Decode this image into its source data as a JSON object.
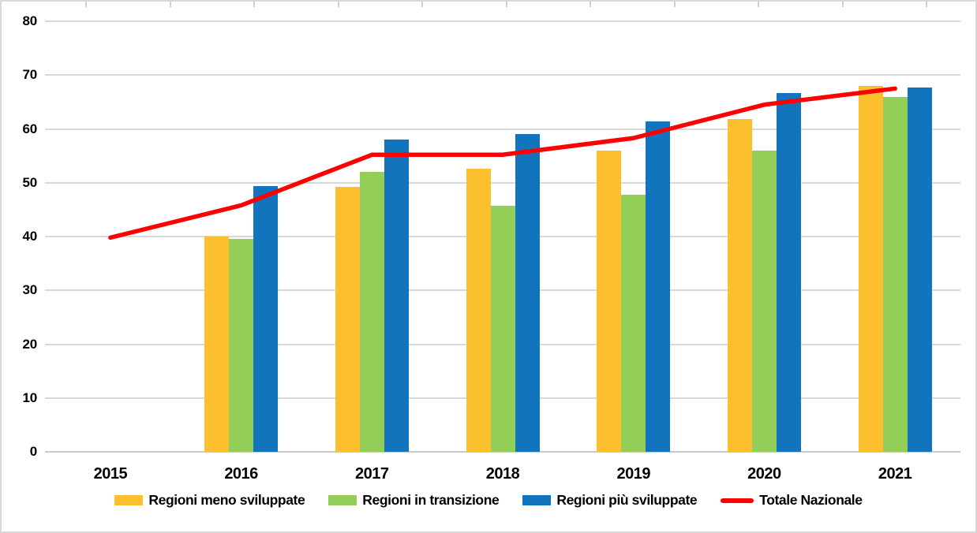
{
  "chart_data": {
    "type": "bar",
    "subtype": "grouped-bars-with-line-overlay",
    "title": "",
    "xlabel": "",
    "ylabel": "",
    "categories": [
      "2015",
      "2016",
      "2017",
      "2018",
      "2019",
      "2020",
      "2021"
    ],
    "series": [
      {
        "name": "Regioni meno sviluppate",
        "type": "bar",
        "color": "#FCC02E",
        "values": [
          null,
          40.0,
          49.3,
          52.6,
          55.9,
          61.8,
          68.0
        ]
      },
      {
        "name": "Regioni in transizione",
        "type": "bar",
        "color": "#92CE58",
        "values": [
          null,
          39.6,
          52.0,
          45.7,
          47.7,
          55.9,
          66.0
        ]
      },
      {
        "name": "Regioni più sviluppate",
        "type": "bar",
        "color": "#1274BD",
        "values": [
          null,
          49.4,
          58.0,
          59.1,
          61.4,
          66.6,
          67.7
        ]
      },
      {
        "name": "Totale Nazionale",
        "type": "line",
        "color": "#FF0000",
        "values": [
          39.8,
          45.8,
          55.2,
          55.2,
          58.3,
          64.5,
          67.5
        ]
      }
    ],
    "ylim": [
      0,
      80
    ],
    "yticks": [
      0,
      10,
      20,
      30,
      40,
      50,
      60,
      70,
      80
    ],
    "grid": true,
    "legend_position": "bottom"
  },
  "colors": {
    "gridline": "#D9D9D9",
    "axis_line": "#C9C9C9",
    "frame_border": "#D9D9D9",
    "text": "#000000",
    "background": "#FFFFFF"
  }
}
